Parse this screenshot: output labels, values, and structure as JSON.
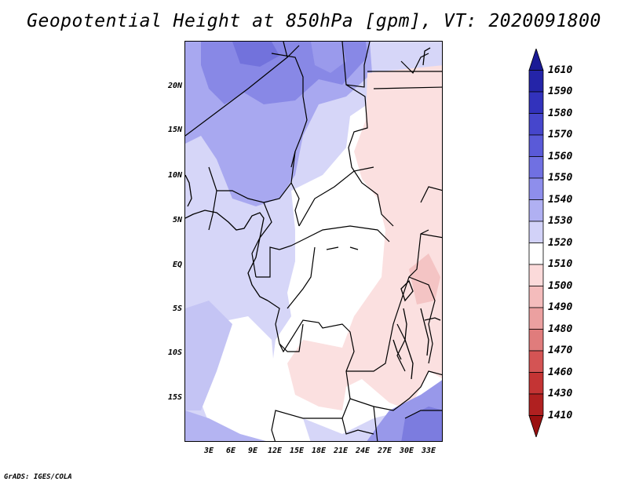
{
  "title": "Geopotential Height at 850hPa [gpm], VT: 2020091800",
  "credit": "GrADS: IGES/COLA",
  "y_axis": [
    "20N",
    "15N",
    "10N",
    "5N",
    "EQ",
    "5S",
    "10S",
    "15S"
  ],
  "x_axis": [
    "3E",
    "6E",
    "9E",
    "12E",
    "15E",
    "18E",
    "21E",
    "24E",
    "27E",
    "30E",
    "33E"
  ],
  "colorbar": {
    "labels": [
      "1610",
      "1590",
      "1580",
      "1570",
      "1560",
      "1550",
      "1540",
      "1530",
      "1520",
      "1510",
      "1500",
      "1490",
      "1480",
      "1470",
      "1460",
      "1430",
      "1410"
    ],
    "colors": [
      "#1a1a96",
      "#2424a8",
      "#3232bc",
      "#4646cc",
      "#5a5ad8",
      "#7070e2",
      "#8e8eec",
      "#b0b0f2",
      "#d2d2f8",
      "#ffffff",
      "#fbdada",
      "#f4bcbc",
      "#eba0a0",
      "#e07c7c",
      "#d45454",
      "#c43434",
      "#b02020",
      "#9a1010"
    ]
  }
}
